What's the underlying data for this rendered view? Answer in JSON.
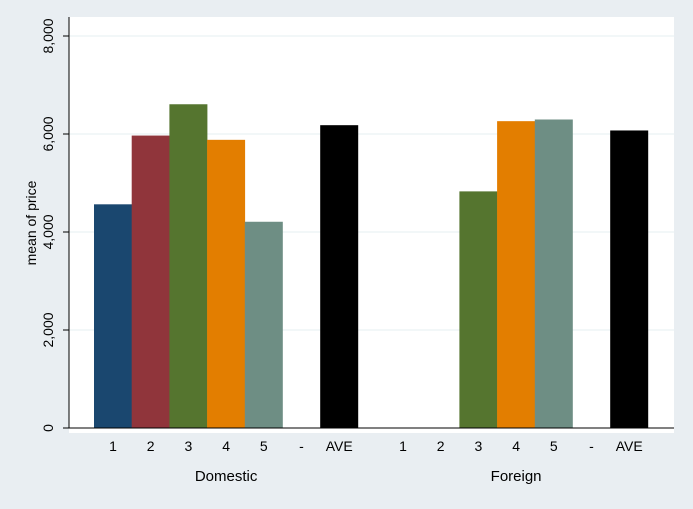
{
  "chart_data": {
    "type": "bar",
    "title": "",
    "xlabel": "",
    "ylabel": "mean of price",
    "ylim": [
      0,
      8000
    ],
    "yticks": [
      0,
      2000,
      4000,
      6000,
      8000
    ],
    "ytick_labels": [
      "0",
      "2,000",
      "4,000",
      "6,000",
      "8,000"
    ],
    "grid": true,
    "groups": [
      {
        "name": "Domestic",
        "categories": [
          "1",
          "2",
          "3",
          "4",
          "5",
          "-",
          "AVE"
        ],
        "values": [
          4565,
          5968,
          6607,
          5881,
          4209,
          null,
          6180
        ]
      },
      {
        "name": "Foreign",
        "categories": [
          "1",
          "2",
          "3",
          "4",
          "5",
          "-",
          "AVE"
        ],
        "values": [
          null,
          null,
          4829,
          6262,
          6296,
          null,
          6072
        ]
      }
    ],
    "colors": {
      "1": "#1a476f",
      "2": "#90353b",
      "3": "#55752f",
      "4": "#e37e00",
      "5": "#6e8e84",
      "AVE": "#000000"
    },
    "plot_background": "#ffffff",
    "page_background": "#e9eef2"
  }
}
